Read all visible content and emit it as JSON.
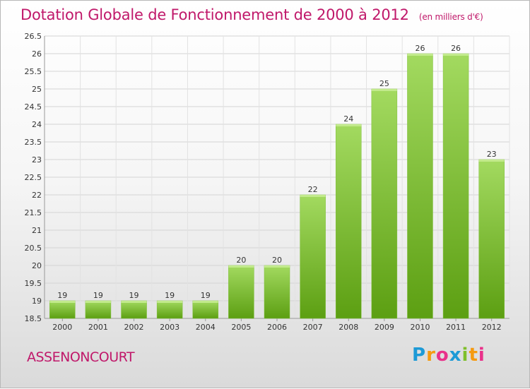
{
  "header": {
    "title": "Dotation Globale de Fonctionnement de 2000 à 2012",
    "subtitle": "(en milliers d'€)"
  },
  "footer": {
    "commune": "ASSENONCOURT",
    "logo_text": "Proxiti"
  },
  "colors": {
    "title": "#c0186a",
    "bar_light": "#9ed65a",
    "bar_dark": "#5fa315",
    "grid": "#d6d6d6"
  },
  "chart_data": {
    "type": "bar",
    "title": "Dotation Globale de Fonctionnement de 2000 à 2012",
    "subtitle": "(en milliers d'€)",
    "xlabel": "",
    "ylabel": "",
    "categories": [
      "2000",
      "2001",
      "2002",
      "2003",
      "2004",
      "2005",
      "2006",
      "2007",
      "2008",
      "2009",
      "2010",
      "2011",
      "2012"
    ],
    "values": [
      19,
      19,
      19,
      19,
      19,
      20,
      20,
      22,
      24,
      25,
      26,
      26,
      23
    ],
    "data_labels": [
      "19",
      "19",
      "19",
      "19",
      "19",
      "20",
      "20",
      "22",
      "24",
      "25",
      "26",
      "26",
      "23"
    ],
    "ylim": [
      18.5,
      26.5
    ],
    "yticks": [
      "18.5",
      "19",
      "19.5",
      "20",
      "20.5",
      "21",
      "21.5",
      "22",
      "22.5",
      "23",
      "23.5",
      "24",
      "24.5",
      "25",
      "25.5",
      "26",
      "26.5"
    ],
    "grid": true,
    "legend": "none"
  }
}
